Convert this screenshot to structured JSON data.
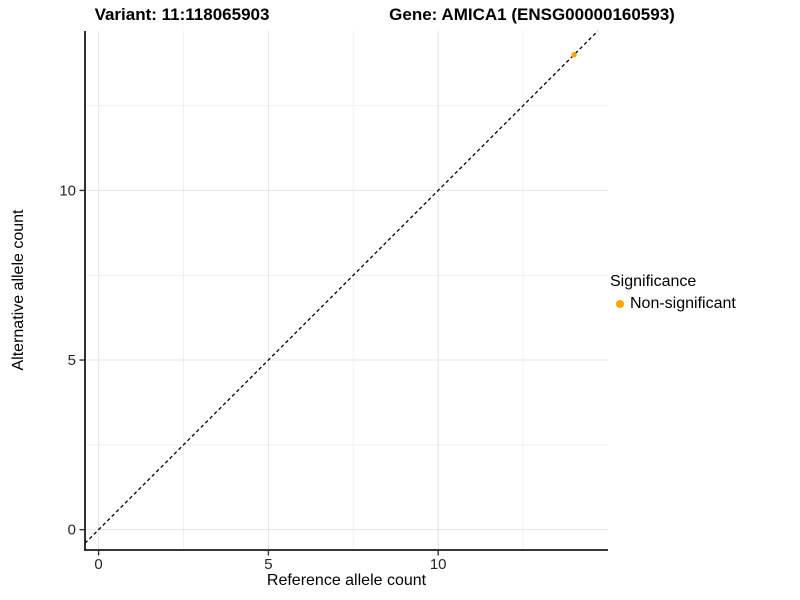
{
  "titles": {
    "left": "Variant: 11:118065903",
    "right": "Gene: AMICA1 (ENSG00000160593)"
  },
  "chart_data": {
    "type": "scatter",
    "xlabel": "Reference allele count",
    "ylabel": "Alternative allele count",
    "x_ticks": [
      0,
      5,
      10
    ],
    "y_ticks": [
      0,
      5,
      10
    ],
    "x_minor_ticks": [
      2.5,
      7.5,
      12.5
    ],
    "y_minor_ticks": [
      2.5,
      7.5,
      12.5
    ],
    "x_domain": [
      -0.4,
      15.0
    ],
    "y_domain": [
      -0.6,
      14.7
    ],
    "points": [
      {
        "x": 14,
        "y": 14,
        "series": "Non-significant"
      }
    ],
    "series": [
      {
        "name": "Non-significant",
        "color": "#FFA500"
      }
    ],
    "identity_line": {
      "equation": "y = x",
      "style": "dashed",
      "color": "#000000"
    },
    "grid": true,
    "legend_position": "right"
  },
  "legend": {
    "title": "Significance",
    "items": [
      {
        "label": "Non-significant",
        "color": "#FFA500"
      }
    ]
  },
  "colors": {
    "point": "#FFA500",
    "grid_major": "#E4E4E4",
    "grid_minor": "#EFEFEF",
    "axis_line": "#1A1A1A",
    "tick_mark": "#333333",
    "tick_label": "#262626",
    "dashed_line": "#000000",
    "background": "#FFFFFF"
  }
}
